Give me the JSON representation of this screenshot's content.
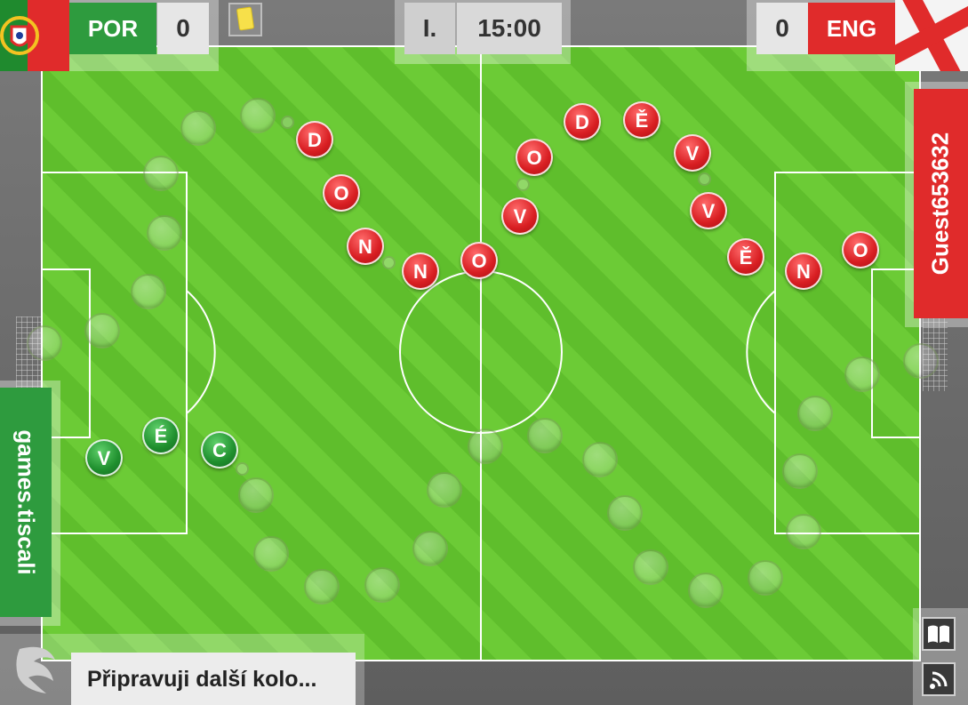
{
  "scoreboard": {
    "home_team": "POR",
    "home_score": "0",
    "away_team": "ENG",
    "away_score": "0",
    "period": "I.",
    "clock": "15:00"
  },
  "side_tabs": {
    "player_name": "Guest653632",
    "site_label": "games.tiscali"
  },
  "status": {
    "message": "Připravuji další kolo..."
  },
  "colors": {
    "portugal_green": "#2e9b3e",
    "england_red": "#e02b2b",
    "pitch_light": "#6ccb36",
    "pitch_dark": "#5fbe2c"
  },
  "tokens": {
    "red": [
      "D",
      "O",
      "N",
      "N",
      "O",
      "V",
      "O",
      "D",
      "Ě",
      "V",
      "V",
      "Ě",
      "N",
      "O"
    ],
    "green": [
      "V",
      "É",
      "C"
    ]
  },
  "icons": [
    "yellow-card-icon",
    "rulebook-icon",
    "signal-icon",
    "logo-icon",
    "portugal-flag-icon",
    "england-flag-icon"
  ]
}
